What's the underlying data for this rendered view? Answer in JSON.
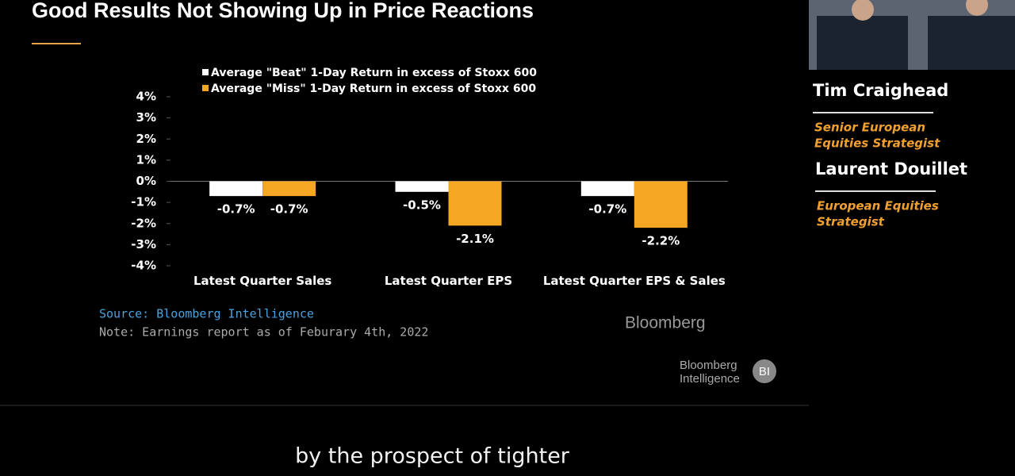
{
  "title": "Good Results Not Showing Up in Price Reactions",
  "chart_data": {
    "type": "bar",
    "categories": [
      "Latest Quarter Sales",
      "Latest Quarter EPS",
      "Latest Quarter EPS & Sales"
    ],
    "series": [
      {
        "name": "Average \"Beat\" 1-Day Return in excess of Stoxx 600",
        "color": "#ffffff",
        "values": [
          -0.7,
          -0.5,
          -0.7
        ],
        "value_labels": [
          "-0.7%",
          "-0.5%",
          "-0.7%"
        ]
      },
      {
        "name": "Average \"Miss\" 1-Day Return in excess of Stoxx 600",
        "color": "#f5a623",
        "values": [
          -0.7,
          -2.1,
          -2.2
        ],
        "value_labels": [
          "-0.7%",
          "-2.1%",
          "-2.2%"
        ]
      }
    ],
    "ylim": [
      -4,
      4
    ],
    "yticks": [
      {
        "value": 4,
        "label": "4%"
      },
      {
        "value": 3,
        "label": "3%"
      },
      {
        "value": 2,
        "label": "2%"
      },
      {
        "value": 1,
        "label": "1%"
      },
      {
        "value": 0,
        "label": "0%"
      },
      {
        "value": -1,
        "label": "-1%"
      },
      {
        "value": -2,
        "label": "-2%"
      },
      {
        "value": -3,
        "label": "-3%"
      },
      {
        "value": -4,
        "label": "-4%"
      }
    ],
    "source": "Source: Bloomberg Intelligence",
    "note": "Note: Earnings report as of Feburary 4th, 2022",
    "logo": "Bloomberg"
  },
  "branding": {
    "lines": [
      "Bloomberg",
      "Intelligence"
    ],
    "badge": "BI"
  },
  "speakers": [
    {
      "name": "Tim Craighead",
      "role": [
        "Senior European",
        "Equities Strategist"
      ]
    },
    {
      "name": "Laurent Douillet",
      "role": [
        "European Equities",
        "Strategist"
      ]
    }
  ],
  "caption": "by the prospect of tighter"
}
